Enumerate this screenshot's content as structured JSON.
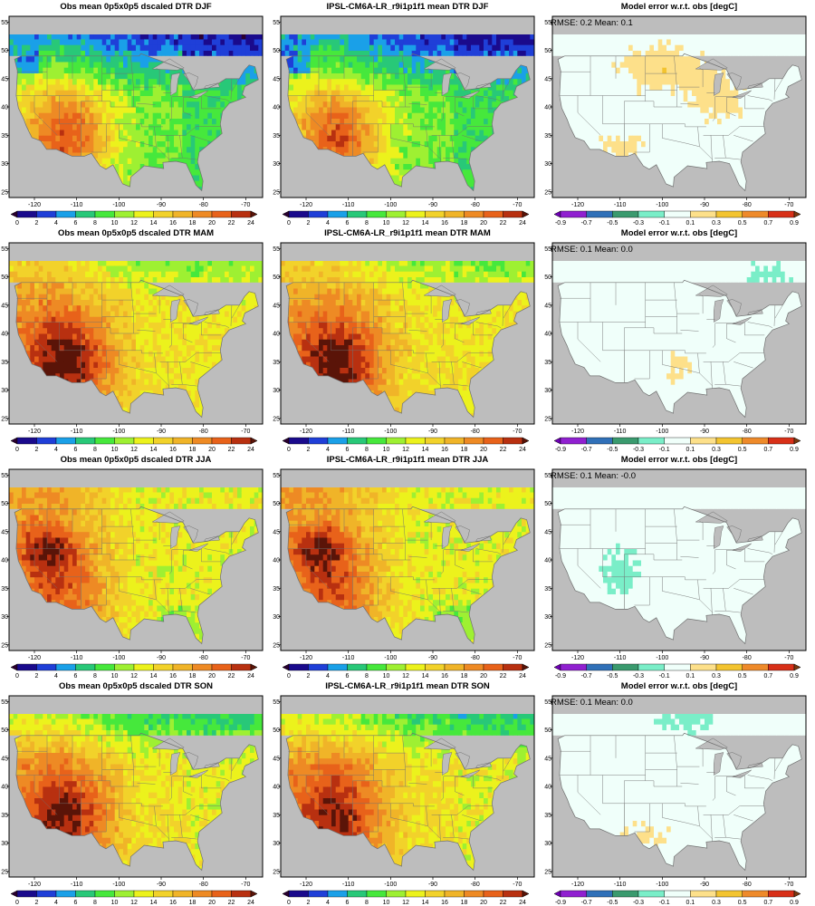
{
  "rows": [
    {
      "season": "DJF",
      "obs_title": "Obs mean 0p5x0p5 dscaled DTR DJF",
      "model_title": "IPSL-CM6A-LR_r9i1p1f1 mean DTR DJF",
      "error_title": "Model error w.r.t. obs [degC]",
      "rmse_text": "RMSE: 0.2",
      "mean_text": "Mean: 0.1"
    },
    {
      "season": "MAM",
      "obs_title": "Obs mean 0p5x0p5 dscaled DTR MAM",
      "model_title": "IPSL-CM6A-LR_r9i1p1f1 mean DTR MAM",
      "error_title": "Model error w.r.t. obs [degC]",
      "rmse_text": "RMSE: 0.1",
      "mean_text": "Mean: 0.0"
    },
    {
      "season": "JJA",
      "obs_title": "Obs mean 0p5x0p5 dscaled DTR JJA",
      "model_title": "IPSL-CM6A-LR_r9i1p1f1 mean DTR JJA",
      "error_title": "Model error w.r.t. obs [degC]",
      "rmse_text": "RMSE: 0.1",
      "mean_text": "Mean: -0.0"
    },
    {
      "season": "SON",
      "obs_title": "Obs mean 0p5x0p5 dscaled DTR SON",
      "model_title": "IPSL-CM6A-LR_r9i1p1f1 mean DTR SON",
      "error_title": "Model error w.r.t. obs [degC]",
      "rmse_text": "RMSE: 0.1",
      "mean_text": "Mean: 0.0"
    }
  ],
  "axes": {
    "lon_ticks": [
      -120,
      -110,
      -100,
      -90,
      -80,
      -70
    ],
    "lat_ticks": [
      25,
      30,
      35,
      40,
      45,
      50,
      55
    ],
    "lon_range": [
      -126,
      -66
    ],
    "lat_range": [
      24,
      56
    ]
  },
  "colorbars": {
    "dtr": {
      "labels": [
        "0",
        "2",
        "4",
        "6",
        "8",
        "10",
        "12",
        "14",
        "16",
        "18",
        "20",
        "22",
        "24"
      ],
      "colors": [
        "#2a0030",
        "#1a0a8c",
        "#1f3fd8",
        "#1aa0e8",
        "#28c878",
        "#46e83c",
        "#9ef032",
        "#ecf21c",
        "#f2d22a",
        "#f0b428",
        "#ee8a24",
        "#e8621a",
        "#b83010",
        "#5a1408"
      ]
    },
    "error": {
      "labels": [
        "-0.9",
        "-0.7",
        "-0.5",
        "-0.3",
        "-0.1",
        "0.1",
        "0.3",
        "0.5",
        "0.7",
        "0.9"
      ],
      "colors": [
        "#7000b8",
        "#9020d0",
        "#3070b8",
        "#3a9a6e",
        "#7aeec8",
        "#f0fffa",
        "#fde08a",
        "#f3c430",
        "#ee8a2a",
        "#d83018",
        "#7a3a10"
      ]
    }
  },
  "colors": {
    "ocean": "#bdbdbd",
    "border": "#707070",
    "frame": "#000000"
  }
}
